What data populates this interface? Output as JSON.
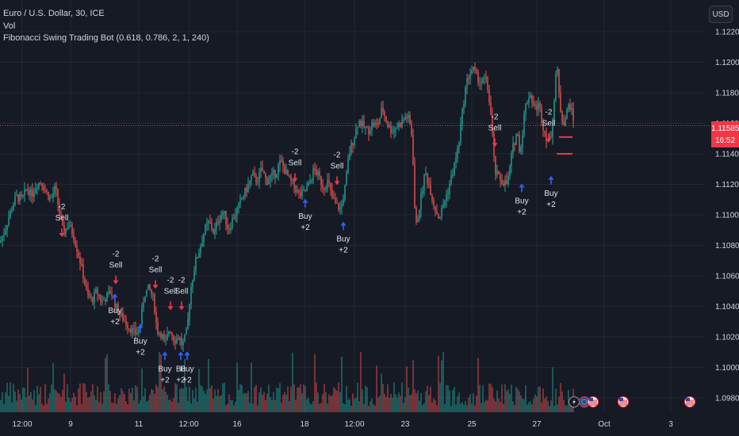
{
  "legend": {
    "symbol_line": "Euro / U.S. Dollar, 30, ICE",
    "volume_label": "Vol",
    "indicator_line": "Fibonacci Swing Trading Bot (0.618, 0.786, 2, 1, 240)"
  },
  "currency_button": "USD",
  "last_price": {
    "value": "1.11585",
    "countdown": "16:52"
  },
  "colors": {
    "background": "#161a25",
    "grid": "#232734",
    "up": "#26a69a",
    "down": "#ef5350",
    "buy_arrow": "#2962ff",
    "sell_arrow": "#f23645",
    "last_price": "#f23645",
    "text": "#d1d4dc"
  },
  "chart_data": {
    "type": "candlestick",
    "y_axis": {
      "ticks": [
        "1.12200",
        "1.12000",
        "1.11800",
        "1.11600",
        "1.11400",
        "1.11200",
        "1.11000",
        "1.10800",
        "1.10600",
        "1.10400",
        "1.10200",
        "1.10000",
        "1.09800"
      ],
      "ylim": [
        1.0975,
        1.1225
      ]
    },
    "x_axis": {
      "ticks": [
        "12:00",
        "9",
        "11",
        "12:00",
        "16",
        "18",
        "12:00",
        "23",
        "25",
        "27",
        "Oct",
        "3"
      ]
    },
    "grid": true,
    "close_path": [
      [
        0,
        1.1082
      ],
      [
        6,
        1.109
      ],
      [
        12,
        1.11
      ],
      [
        20,
        1.1112
      ],
      [
        28,
        1.111
      ],
      [
        34,
        1.1118
      ],
      [
        40,
        1.1113
      ],
      [
        46,
        1.112
      ],
      [
        52,
        1.1122
      ],
      [
        58,
        1.1115
      ],
      [
        64,
        1.111
      ],
      [
        70,
        1.1118
      ],
      [
        76,
        1.1097
      ],
      [
        80,
        1.1088
      ],
      [
        86,
        1.1094
      ],
      [
        92,
        1.1088
      ],
      [
        98,
        1.1076
      ],
      [
        104,
        1.1063
      ],
      [
        110,
        1.1047
      ],
      [
        116,
        1.1044
      ],
      [
        122,
        1.105
      ],
      [
        128,
        1.1043
      ],
      [
        134,
        1.1046
      ],
      [
        140,
        1.105
      ],
      [
        146,
        1.104
      ],
      [
        152,
        1.1034
      ],
      [
        158,
        1.103
      ],
      [
        164,
        1.1026
      ],
      [
        170,
        1.1022
      ],
      [
        176,
        1.1025
      ],
      [
        182,
        1.1048
      ],
      [
        188,
        1.1052
      ],
      [
        194,
        1.1044
      ],
      [
        198,
        1.1024
      ],
      [
        204,
        1.1022
      ],
      [
        208,
        1.1014
      ],
      [
        214,
        1.1026
      ],
      [
        220,
        1.1018
      ],
      [
        226,
        1.102
      ],
      [
        230,
        1.1014
      ],
      [
        236,
        1.1024
      ],
      [
        240,
        1.105
      ],
      [
        246,
        1.1068
      ],
      [
        252,
        1.1078
      ],
      [
        258,
        1.109
      ],
      [
        264,
        1.1095
      ],
      [
        270,
        1.1088
      ],
      [
        276,
        1.1098
      ],
      [
        282,
        1.1102
      ],
      [
        288,
        1.109
      ],
      [
        294,
        1.1098
      ],
      [
        300,
        1.1104
      ],
      [
        306,
        1.1112
      ],
      [
        312,
        1.1118
      ],
      [
        318,
        1.1126
      ],
      [
        324,
        1.1122
      ],
      [
        330,
        1.113
      ],
      [
        336,
        1.1122
      ],
      [
        342,
        1.1125
      ],
      [
        348,
        1.1128
      ],
      [
        354,
        1.1135
      ],
      [
        360,
        1.1128
      ],
      [
        366,
        1.1122
      ],
      [
        372,
        1.1118
      ],
      [
        378,
        1.1112
      ],
      [
        384,
        1.1115
      ],
      [
        390,
        1.112
      ],
      [
        396,
        1.113
      ],
      [
        402,
        1.1125
      ],
      [
        408,
        1.1118
      ],
      [
        414,
        1.1122
      ],
      [
        418,
        1.1112
      ],
      [
        424,
        1.1106
      ],
      [
        430,
        1.1104
      ],
      [
        436,
        1.112
      ],
      [
        440,
        1.114
      ],
      [
        446,
        1.115
      ],
      [
        452,
        1.1162
      ],
      [
        458,
        1.1158
      ],
      [
        464,
        1.1155
      ],
      [
        470,
        1.116
      ],
      [
        476,
        1.1158
      ],
      [
        482,
        1.117
      ],
      [
        488,
        1.116
      ],
      [
        494,
        1.1155
      ],
      [
        500,
        1.1158
      ],
      [
        506,
        1.116
      ],
      [
        512,
        1.1165
      ],
      [
        516,
        1.1162
      ],
      [
        520,
        1.115
      ],
      [
        524,
        1.109
      ],
      [
        530,
        1.1108
      ],
      [
        536,
        1.1128
      ],
      [
        542,
        1.1118
      ],
      [
        548,
        1.1105
      ],
      [
        554,
        1.1098
      ],
      [
        560,
        1.1108
      ],
      [
        566,
        1.1118
      ],
      [
        572,
        1.113
      ],
      [
        578,
        1.1145
      ],
      [
        582,
        1.1162
      ],
      [
        586,
        1.118
      ],
      [
        590,
        1.119
      ],
      [
        596,
        1.1196
      ],
      [
        602,
        1.119
      ],
      [
        608,
        1.1186
      ],
      [
        612,
        1.119
      ],
      [
        616,
        1.118
      ],
      [
        620,
        1.116
      ],
      [
        624,
        1.1128
      ],
      [
        628,
        1.1125
      ],
      [
        634,
        1.1122
      ],
      [
        640,
        1.112
      ],
      [
        646,
        1.1142
      ],
      [
        652,
        1.1155
      ],
      [
        656,
        1.114
      ],
      [
        662,
        1.117
      ],
      [
        668,
        1.118
      ],
      [
        674,
        1.117
      ],
      [
        680,
        1.1172
      ],
      [
        686,
        1.1155
      ],
      [
        690,
        1.115
      ],
      [
        694,
        1.1148
      ],
      [
        698,
        1.1168
      ],
      [
        702,
        1.12
      ],
      [
        706,
        1.1172
      ],
      [
        710,
        1.116
      ],
      [
        714,
        1.1165
      ],
      [
        718,
        1.1174
      ],
      [
        724,
        1.116
      ]
    ],
    "sell_signals": [
      {
        "x_pos": 78,
        "signal_price": 1.1086,
        "label_top": "-2",
        "label_bottom": "Sell"
      },
      {
        "x_pos": 146,
        "signal_price": 1.1055,
        "label_top": "-2",
        "label_bottom": "Sell"
      },
      {
        "x_pos": 196,
        "signal_price": 1.1052,
        "label_top": "-2",
        "label_bottom": "Sell"
      },
      {
        "x_pos": 215,
        "signal_price": 1.1038,
        "label_top": "-2",
        "label_bottom": "Sell"
      },
      {
        "x_pos": 229,
        "signal_price": 1.1038,
        "label_top": "-2",
        "label_bottom": "Sell"
      },
      {
        "x_pos": 372,
        "signal_price": 1.1122,
        "label_top": "-2",
        "label_bottom": "Sell"
      },
      {
        "x_pos": 425,
        "signal_price": 1.112,
        "label_top": "-2",
        "label_bottom": "Sell"
      },
      {
        "x_pos": 624,
        "signal_price": 1.1145,
        "label_top": "-2",
        "label_bottom": "Sell"
      },
      {
        "x_pos": 692,
        "signal_price": 1.1148,
        "label_top": "-2",
        "label_bottom": "Sell"
      }
    ],
    "buy_signals": [
      {
        "x_pos": 145,
        "signal_price": 1.1048,
        "label_top": "Buy",
        "label_bottom": "+2"
      },
      {
        "x_pos": 177,
        "signal_price": 1.1028,
        "label_top": "Buy",
        "label_bottom": "+2"
      },
      {
        "x_pos": 208,
        "signal_price": 1.101,
        "label_top": "Buy",
        "label_bottom": "+2"
      },
      {
        "x_pos": 228,
        "signal_price": 1.101,
        "label_top": "Bu",
        "label_bottom": "+2"
      },
      {
        "x_pos": 236,
        "signal_price": 1.101,
        "label_top": "Buy",
        "label_bottom": "+2"
      },
      {
        "x_pos": 385,
        "signal_price": 1.111,
        "label_top": "Buy",
        "label_bottom": "+2"
      },
      {
        "x_pos": 433,
        "signal_price": 1.1095,
        "label_top": "Buy",
        "label_bottom": "+2"
      },
      {
        "x_pos": 658,
        "signal_price": 1.112,
        "label_top": "Buy",
        "label_bottom": "+2"
      },
      {
        "x_pos": 695,
        "signal_price": 1.1125,
        "label_top": "Buy",
        "label_bottom": "+2"
      }
    ],
    "last_price_line": 1.11585,
    "levels": [
      {
        "price": 1.1151,
        "x_from": 705,
        "x_to": 722
      },
      {
        "price": 1.114,
        "x_from": 702,
        "x_to": 722
      }
    ],
    "event_markers": [
      {
        "x_pos": 724,
        "icon": "lightning-icon"
      },
      {
        "x_pos": 737,
        "icon": "eu-flag-icon"
      },
      {
        "x_pos": 748,
        "icon": "us-flag-icon"
      },
      {
        "x_pos": 786,
        "icon": "us-flag-icon"
      },
      {
        "x_pos": 870,
        "icon": "us-flag-icon"
      }
    ]
  }
}
